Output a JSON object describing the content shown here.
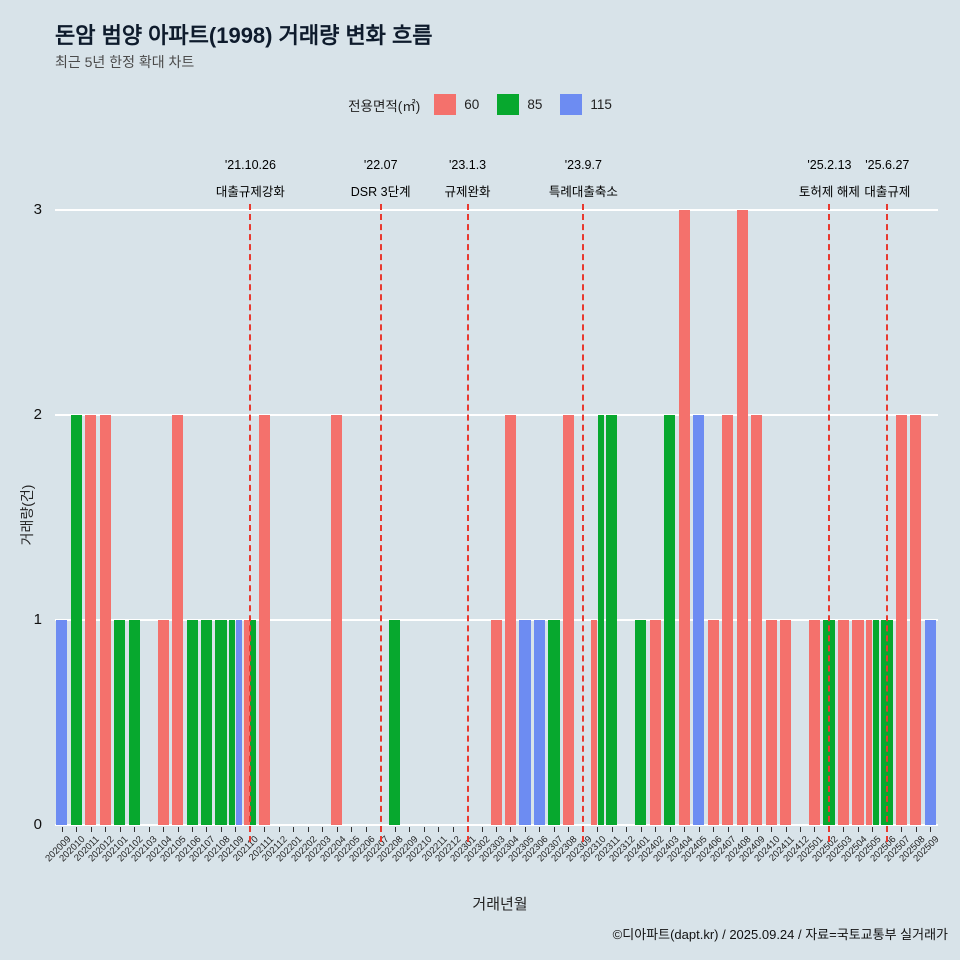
{
  "page": {
    "background": "#d8e3e9"
  },
  "chart_data": {
    "type": "bar",
    "title": "돈암 범양 아파트(1998) 거래량 변화 흐름",
    "subtitle": "최근 5년 한정 확대 차트",
    "xlabel": "거래년월",
    "ylabel": "거래량(건)",
    "ylim": [
      0,
      3
    ],
    "yticks": [
      0,
      1,
      2,
      3
    ],
    "grid": "horizontal-white",
    "legend": {
      "title": "전용면적(㎡)",
      "position": "top-center"
    },
    "event_line_color": "#e8392f",
    "categories": [
      "202009",
      "202010",
      "202011",
      "202012",
      "202101",
      "202102",
      "202103",
      "202104",
      "202105",
      "202106",
      "202107",
      "202108",
      "202109",
      "202110",
      "202111",
      "202112",
      "202201",
      "202202",
      "202203",
      "202204",
      "202205",
      "202206",
      "202207",
      "202208",
      "202209",
      "202210",
      "202211",
      "202212",
      "202301",
      "202302",
      "202303",
      "202304",
      "202305",
      "202306",
      "202307",
      "202308",
      "202309",
      "202310",
      "202311",
      "202312",
      "202401",
      "202402",
      "202403",
      "202404",
      "202405",
      "202406",
      "202407",
      "202408",
      "202409",
      "202410",
      "202411",
      "202412",
      "202501",
      "202502",
      "202503",
      "202504",
      "202505",
      "202506",
      "202507",
      "202508",
      "202509"
    ],
    "series": [
      {
        "name": "60",
        "color": "#f4716c",
        "values": [
          0,
          0,
          2,
          2,
          0,
          0,
          0,
          1,
          2,
          0,
          0,
          0,
          0,
          1,
          2,
          0,
          0,
          0,
          0,
          2,
          0,
          0,
          0,
          0,
          0,
          0,
          0,
          0,
          0,
          0,
          1,
          2,
          0,
          0,
          0,
          2,
          0,
          1,
          0,
          0,
          0,
          1,
          0,
          3,
          0,
          1,
          2,
          3,
          2,
          1,
          1,
          0,
          1,
          0,
          1,
          1,
          1,
          0,
          2,
          2,
          0
        ]
      },
      {
        "name": "85",
        "color": "#07a82e",
        "values": [
          0,
          2,
          0,
          0,
          1,
          1,
          0,
          0,
          0,
          1,
          1,
          1,
          1,
          1,
          0,
          0,
          0,
          0,
          0,
          0,
          0,
          0,
          0,
          1,
          0,
          0,
          0,
          0,
          0,
          0,
          0,
          0,
          0,
          0,
          1,
          0,
          0,
          2,
          2,
          0,
          1,
          0,
          2,
          0,
          0,
          0,
          0,
          0,
          0,
          0,
          0,
          0,
          0,
          1,
          0,
          0,
          1,
          1,
          0,
          0,
          0
        ]
      },
      {
        "name": "115",
        "color": "#6d8cf2",
        "values": [
          1,
          0,
          0,
          0,
          0,
          0,
          0,
          0,
          0,
          0,
          0,
          0,
          1,
          0,
          0,
          0,
          0,
          0,
          0,
          0,
          0,
          0,
          0,
          0,
          0,
          0,
          0,
          0,
          0,
          0,
          0,
          0,
          1,
          1,
          0,
          0,
          0,
          0,
          0,
          0,
          0,
          0,
          0,
          0,
          2,
          0,
          0,
          0,
          0,
          0,
          0,
          0,
          0,
          0,
          0,
          0,
          0,
          0,
          0,
          0,
          1
        ]
      }
    ],
    "events": [
      {
        "label": "'21.10.26",
        "desc": "대출규제강화",
        "month": "202110"
      },
      {
        "label": "'22.07",
        "desc": "DSR 3단계",
        "month": "202207"
      },
      {
        "label": "'23.1.3",
        "desc": "규제완화",
        "month": "202301"
      },
      {
        "label": "'23.9.7",
        "desc": "특례대출축소",
        "month": "202309"
      },
      {
        "label": "'25.2.13",
        "desc": "토허제 해제",
        "month": "202502"
      },
      {
        "label": "'25.6.27",
        "desc": "대출규제",
        "month": "202506"
      }
    ]
  },
  "footer": {
    "credit": "©디아파트(dapt.kr) / 2025.09.24 / 자료=국토교통부 실거래가"
  }
}
